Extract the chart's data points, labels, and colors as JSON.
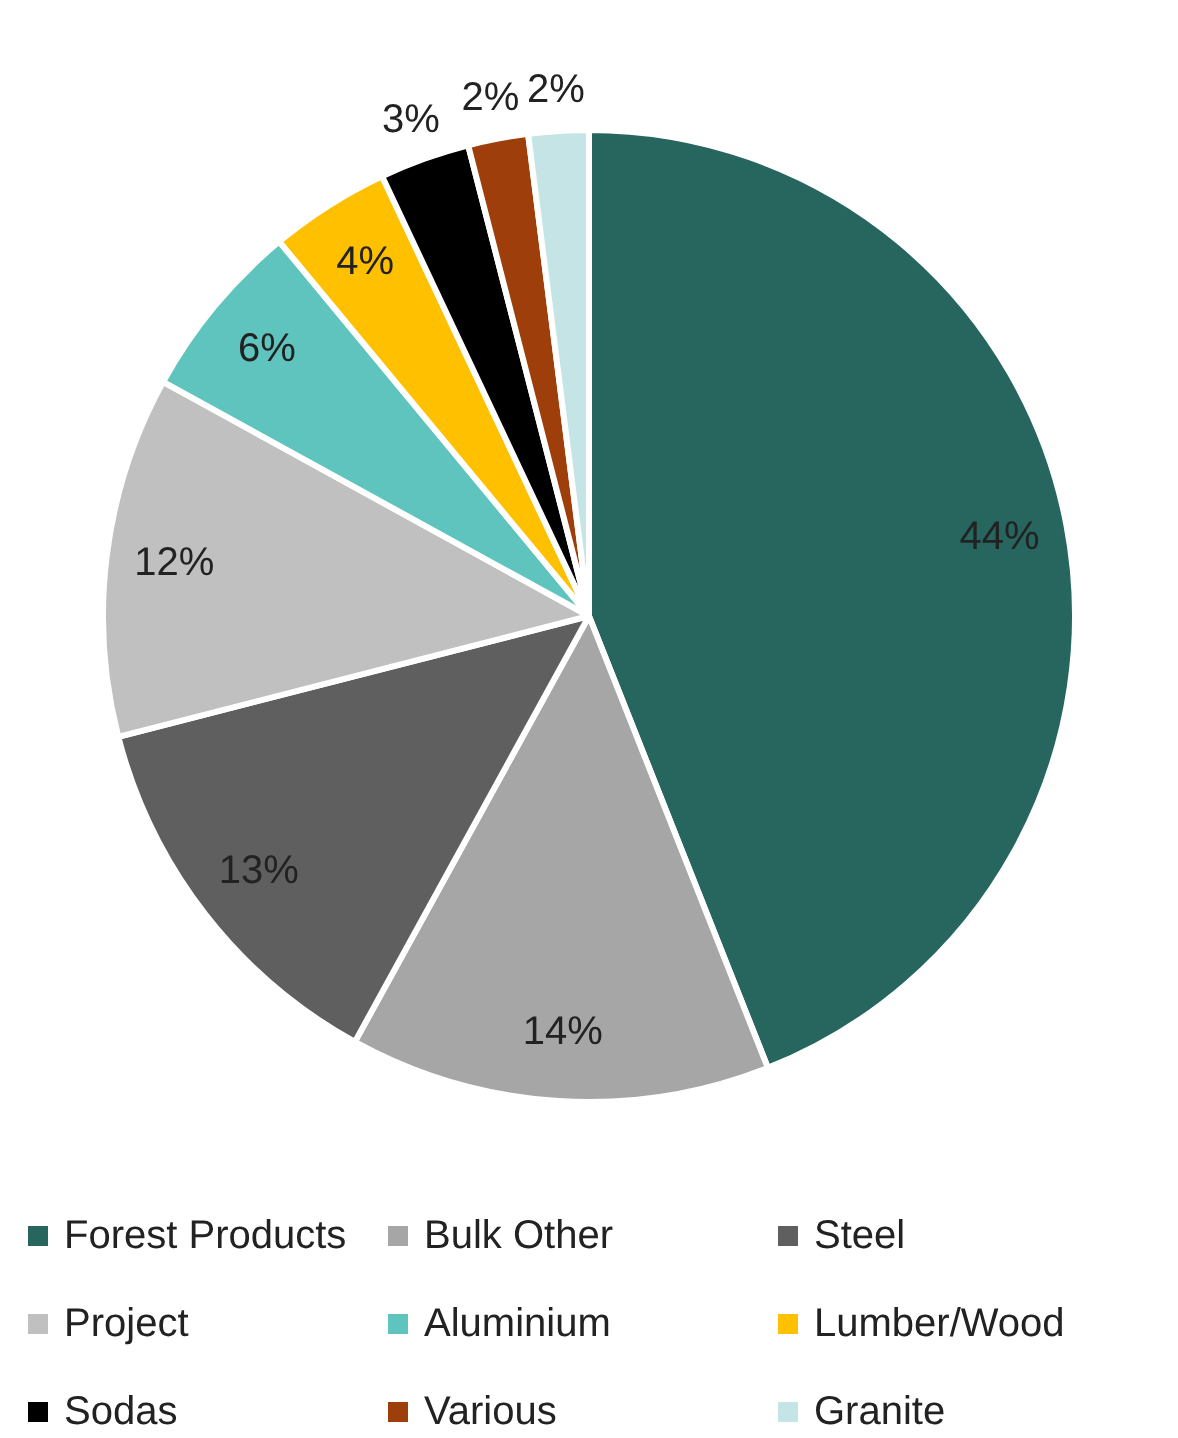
{
  "chart_data": {
    "type": "pie",
    "categories": [
      "Forest Products",
      "Bulk Other",
      "Steel",
      "Project",
      "Aluminium",
      "Lumber/Wood",
      "Sodas",
      "Various",
      "Granite"
    ],
    "values": [
      44,
      14,
      13,
      12,
      6,
      4,
      3,
      2,
      2
    ],
    "value_labels": [
      "44%",
      "14%",
      "13%",
      "12%",
      "6%",
      "4%",
      "3%",
      "2%",
      "2%"
    ],
    "colors": [
      "#26665f",
      "#a6a6a6",
      "#5f5f5f",
      "#c0c0c0",
      "#5ec4bd",
      "#ffc000",
      "#000000",
      "#9e3f0b",
      "#c5e4e6"
    ],
    "legend": "bottom"
  }
}
